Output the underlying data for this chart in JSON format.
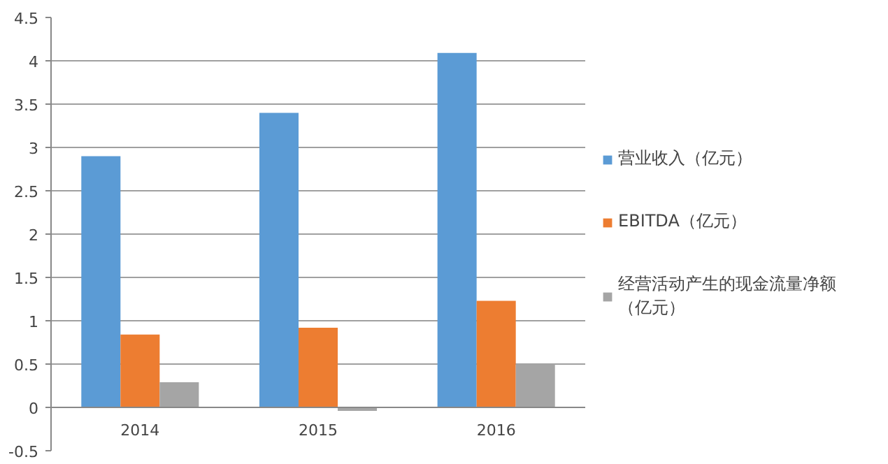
{
  "chart_data": {
    "type": "bar",
    "categories": [
      "2014",
      "2015",
      "2016"
    ],
    "series": [
      {
        "name": "营业收入（亿元）",
        "color": "#5b9bd5",
        "values": [
          2.9,
          3.4,
          4.09
        ]
      },
      {
        "name": "EBITDA（亿元）",
        "color": "#ed7d31",
        "values": [
          0.84,
          0.92,
          1.23
        ]
      },
      {
        "name": "经营活动产生的现金流量净额（亿元）",
        "color": "#a5a5a5",
        "values": [
          0.29,
          -0.04,
          0.5
        ]
      }
    ],
    "ylim": [
      -0.5,
      4.5
    ],
    "yticks": [
      -0.5,
      0,
      0.5,
      1,
      1.5,
      2,
      2.5,
      3,
      3.5,
      4,
      4.5
    ],
    "grid": "y",
    "legend": "right"
  }
}
